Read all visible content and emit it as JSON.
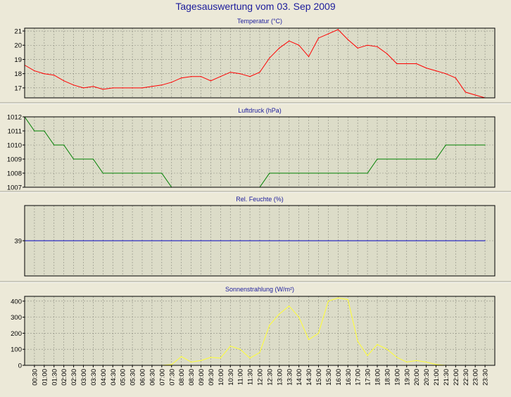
{
  "title": "Tagesauswertung vom 03. Sep 2009",
  "colors": {
    "background": "#ece9d8",
    "plot_bg": "#dcdcc8",
    "title": "#1c1c9c",
    "separator": "#a0a090"
  },
  "chart_data": [
    {
      "type": "line",
      "title": "Temperatur (°C)",
      "color": "#ff0000",
      "ylim": [
        16.3,
        21.2
      ],
      "yticks": [
        "17",
        "18",
        "19",
        "20",
        "21"
      ],
      "x": [
        "00:00",
        "00:30",
        "01:00",
        "01:30",
        "02:00",
        "02:30",
        "03:00",
        "03:30",
        "04:00",
        "04:30",
        "05:00",
        "05:30",
        "06:00",
        "06:30",
        "07:00",
        "07:30",
        "08:00",
        "08:30",
        "09:00",
        "09:30",
        "10:00",
        "10:30",
        "11:00",
        "11:30",
        "12:00",
        "12:30",
        "13:00",
        "13:30",
        "14:00",
        "14:30",
        "15:00",
        "15:30",
        "16:00",
        "16:30",
        "17:00",
        "17:30",
        "18:00",
        "18:30",
        "19:00",
        "19:30",
        "20:00",
        "20:30",
        "21:00",
        "21:30",
        "22:00",
        "22:30",
        "23:00",
        "23:30"
      ],
      "values": [
        18.6,
        18.2,
        18.0,
        17.9,
        17.5,
        17.2,
        17.0,
        17.1,
        16.9,
        17.0,
        17.0,
        17.0,
        17.0,
        17.1,
        17.2,
        17.4,
        17.7,
        17.8,
        17.8,
        17.5,
        17.8,
        18.1,
        18.0,
        17.8,
        18.1,
        19.1,
        19.8,
        20.3,
        20.0,
        19.2,
        20.5,
        20.8,
        21.1,
        20.4,
        19.8,
        20.0,
        19.9,
        19.4,
        18.7,
        18.7,
        18.7,
        18.4,
        18.2,
        18.0,
        17.7,
        16.7,
        16.5,
        16.3
      ],
      "grid": true
    },
    {
      "type": "line",
      "title": "Luftdruck (hPa)",
      "color": "#008000",
      "ylim": [
        1007,
        1012
      ],
      "yticks": [
        "1007",
        "1008",
        "1009",
        "1010",
        "1011",
        "1012"
      ],
      "x": [
        "00:00",
        "00:30",
        "01:00",
        "01:30",
        "02:00",
        "02:30",
        "03:00",
        "03:30",
        "04:00",
        "04:30",
        "05:00",
        "05:30",
        "06:00",
        "06:30",
        "07:00",
        "07:30",
        "08:00",
        "08:30",
        "09:00",
        "09:30",
        "10:00",
        "10:30",
        "11:00",
        "11:30",
        "12:00",
        "12:30",
        "13:00",
        "13:30",
        "14:00",
        "14:30",
        "15:00",
        "15:30",
        "16:00",
        "16:30",
        "17:00",
        "17:30",
        "18:00",
        "18:30",
        "19:00",
        "19:30",
        "20:00",
        "20:30",
        "21:00",
        "21:30",
        "22:00",
        "22:30",
        "23:00",
        "23:30"
      ],
      "values": [
        1012,
        1011,
        1011,
        1010,
        1010,
        1009,
        1009,
        1009,
        1008,
        1008,
        1008,
        1008,
        1008,
        1008,
        1008,
        1007,
        1007,
        1007,
        1007,
        1007,
        1007,
        1007,
        1007,
        1007,
        1007,
        1008,
        1008,
        1008,
        1008,
        1008,
        1008,
        1008,
        1008,
        1008,
        1008,
        1008,
        1009,
        1009,
        1009,
        1009,
        1009,
        1009,
        1009,
        1010,
        1010,
        1010,
        1010,
        1010
      ],
      "grid": true
    },
    {
      "type": "line",
      "title": "Rel. Feuchte (%)",
      "color": "#0000c0",
      "ylim": [
        35,
        43
      ],
      "yticks": [
        "39"
      ],
      "x": [
        "00:00",
        "00:30",
        "01:00",
        "01:30",
        "02:00",
        "02:30",
        "03:00",
        "03:30",
        "04:00",
        "04:30",
        "05:00",
        "05:30",
        "06:00",
        "06:30",
        "07:00",
        "07:30",
        "08:00",
        "08:30",
        "09:00",
        "09:30",
        "10:00",
        "10:30",
        "11:00",
        "11:30",
        "12:00",
        "12:30",
        "13:00",
        "13:30",
        "14:00",
        "14:30",
        "15:00",
        "15:30",
        "16:00",
        "16:30",
        "17:00",
        "17:30",
        "18:00",
        "18:30",
        "19:00",
        "19:30",
        "20:00",
        "20:30",
        "21:00",
        "21:30",
        "22:00",
        "22:30",
        "23:00",
        "23:30"
      ],
      "values": [
        39,
        39,
        39,
        39,
        39,
        39,
        39,
        39,
        39,
        39,
        39,
        39,
        39,
        39,
        39,
        39,
        39,
        39,
        39,
        39,
        39,
        39,
        39,
        39,
        39,
        39,
        39,
        39,
        39,
        39,
        39,
        39,
        39,
        39,
        39,
        39,
        39,
        39,
        39,
        39,
        39,
        39,
        39,
        39,
        39,
        39,
        39,
        39
      ],
      "grid": true
    },
    {
      "type": "line",
      "title": "Sonnenstrahlung (W/m²)",
      "color": "#ffff33",
      "ylim": [
        0,
        430
      ],
      "yticks": [
        "0",
        "100",
        "200",
        "300",
        "400"
      ],
      "x": [
        "00:00",
        "00:30",
        "01:00",
        "01:30",
        "02:00",
        "02:30",
        "03:00",
        "03:30",
        "04:00",
        "04:30",
        "05:00",
        "05:30",
        "06:00",
        "06:30",
        "07:00",
        "07:30",
        "08:00",
        "08:30",
        "09:00",
        "09:30",
        "10:00",
        "10:30",
        "11:00",
        "11:30",
        "12:00",
        "12:30",
        "13:00",
        "13:30",
        "14:00",
        "14:30",
        "15:00",
        "15:30",
        "16:00",
        "16:30",
        "17:00",
        "17:30",
        "18:00",
        "18:30",
        "19:00",
        "19:30",
        "20:00",
        "20:30",
        "21:00",
        "21:30",
        "22:00",
        "22:30",
        "23:00",
        "23:30"
      ],
      "values": [
        0,
        0,
        0,
        0,
        0,
        0,
        0,
        0,
        0,
        0,
        0,
        0,
        0,
        0,
        0,
        5,
        55,
        20,
        30,
        50,
        45,
        120,
        100,
        45,
        80,
        250,
        320,
        370,
        300,
        160,
        200,
        400,
        420,
        410,
        150,
        60,
        130,
        100,
        50,
        20,
        30,
        20,
        5,
        0,
        0,
        0,
        0,
        0
      ],
      "grid": true
    }
  ],
  "xaxis_labels": [
    "00:30",
    "01:00",
    "01:30",
    "02:00",
    "02:30",
    "03:00",
    "03:30",
    "04:00",
    "04:30",
    "05:00",
    "05:30",
    "06:00",
    "06:30",
    "07:00",
    "07:30",
    "08:00",
    "08:30",
    "09:00",
    "09:30",
    "10:00",
    "10:30",
    "11:00",
    "11:30",
    "12:00",
    "12:30",
    "13:00",
    "13:30",
    "14:00",
    "14:30",
    "15:00",
    "15:30",
    "16:00",
    "16:30",
    "17:00",
    "17:30",
    "18:00",
    "18:30",
    "19:00",
    "19:30",
    "20:00",
    "20:30",
    "21:00",
    "21:30",
    "22:00",
    "22:30",
    "23:00",
    "23:30"
  ]
}
